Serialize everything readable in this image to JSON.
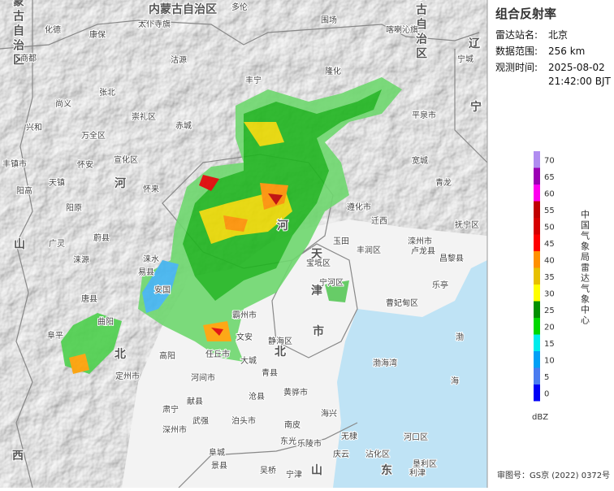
{
  "map": {
    "province_labels": [
      "内蒙古自治区",
      "内蒙古自治区",
      "内蒙古自治区",
      "辽",
      "宁",
      "河",
      "北",
      "河",
      "北",
      "天",
      "津",
      "市",
      "山",
      "东",
      "山",
      "西"
    ],
    "labels": [
      "多伦",
      "化德",
      "太仆寺旗",
      "康保",
      "商都",
      "沽源",
      "围场",
      "喀喇沁旗",
      "宁城",
      "尚义",
      "张北",
      "丰宁",
      "隆化",
      "平泉市",
      "兴和",
      "崇礼区",
      "万全区",
      "赤城",
      "宽城",
      "丰镇市",
      "宣化区",
      "怀安",
      "天镇",
      "阳高",
      "怀来",
      "遵化市",
      "迁西",
      "青龙",
      "阳原",
      "蔚县",
      "广灵",
      "涞源",
      "涞水",
      "易县",
      "玉田",
      "丰润区",
      "滦州市",
      "卢龙县",
      "抚宁区",
      "昌黎县",
      "宝坻区",
      "宁河区",
      "乐亭",
      "曹妃甸区",
      "唐县",
      "曲阳",
      "阜平",
      "霸州市",
      "文安",
      "静海区",
      "大城",
      "任丘市",
      "高阳",
      "安国",
      "河间市",
      "青县",
      "定州市",
      "献县",
      "沧县",
      "黄骅市",
      "海兴",
      "肃宁",
      "泊头市",
      "南皮",
      "深州市",
      "武强",
      "阜城",
      "东光",
      "景县",
      "吴桥",
      "宁津",
      "乐陵市",
      "庆云",
      "无棣",
      "沾化区",
      "河口区",
      "垦利区",
      "利津",
      "渤海湾",
      "渤",
      "海"
    ]
  },
  "panel": {
    "title": "组合反射率",
    "station_label": "雷达站名:",
    "station": "北京",
    "range_label": "数据范围:",
    "range": "256 km",
    "time_label": "观测时间:",
    "time_date": "2025-08-02",
    "time_clock": "21:42:00 BJT",
    "unit": "dBZ",
    "credit": "中国气象局雷达气象中心",
    "approval": "审图号：GS京 (2022) 0372号"
  },
  "legend": {
    "ticks": [
      70,
      65,
      60,
      55,
      50,
      45,
      40,
      35,
      30,
      25,
      20,
      15,
      10,
      5,
      0
    ],
    "colors": [
      "#b08cf0",
      "#9b00b4",
      "#ff00f0",
      "#c00000",
      "#d60000",
      "#ff0000",
      "#ff9000",
      "#e7c000",
      "#ffff00",
      "#019000",
      "#00d800",
      "#00ecec",
      "#01a0f6",
      "#4a7cf0",
      "#0000f6"
    ]
  }
}
